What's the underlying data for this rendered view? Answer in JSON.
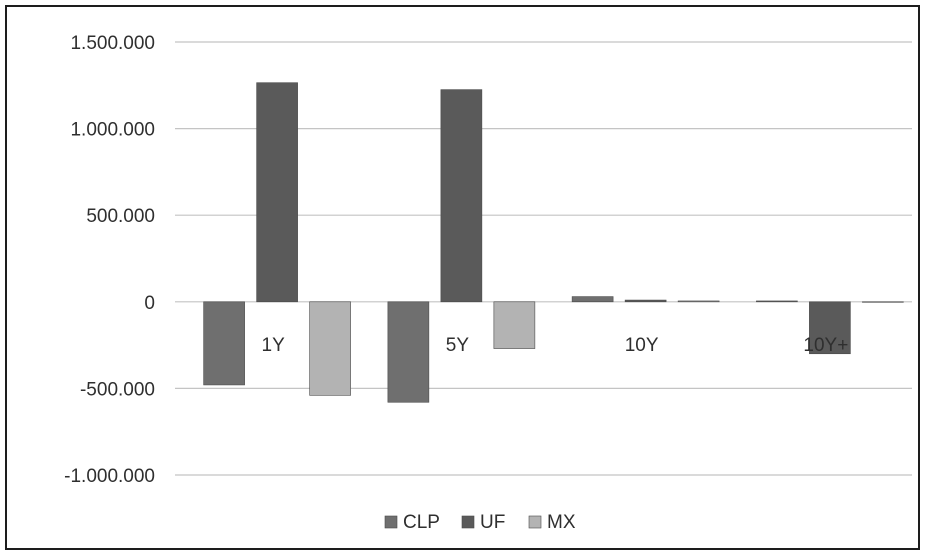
{
  "chart_data": {
    "type": "bar",
    "title": "",
    "xlabel": "",
    "ylabel": "",
    "categories": [
      "1Y",
      "5Y",
      "10Y",
      "10Y+"
    ],
    "ylim": [
      -1000000,
      1500000
    ],
    "yticks": [
      1500000,
      1000000,
      500000,
      0,
      -500000,
      -1000000
    ],
    "ytick_labels": [
      "1.500.000",
      "1.000.000",
      "500.000",
      "0",
      "-500.000",
      "-1.000.000"
    ],
    "grid": true,
    "legend_position": "bottom",
    "series": [
      {
        "name": "CLP",
        "color": "#6f6f6f",
        "values": [
          -480000,
          -580000,
          30000,
          5000
        ]
      },
      {
        "name": "UF",
        "color": "#5a5a5a",
        "values": [
          1265000,
          1225000,
          10000,
          -300000
        ]
      },
      {
        "name": "MX",
        "color": "#b3b3b3",
        "values": [
          -540000,
          -270000,
          5000,
          0
        ]
      }
    ]
  }
}
